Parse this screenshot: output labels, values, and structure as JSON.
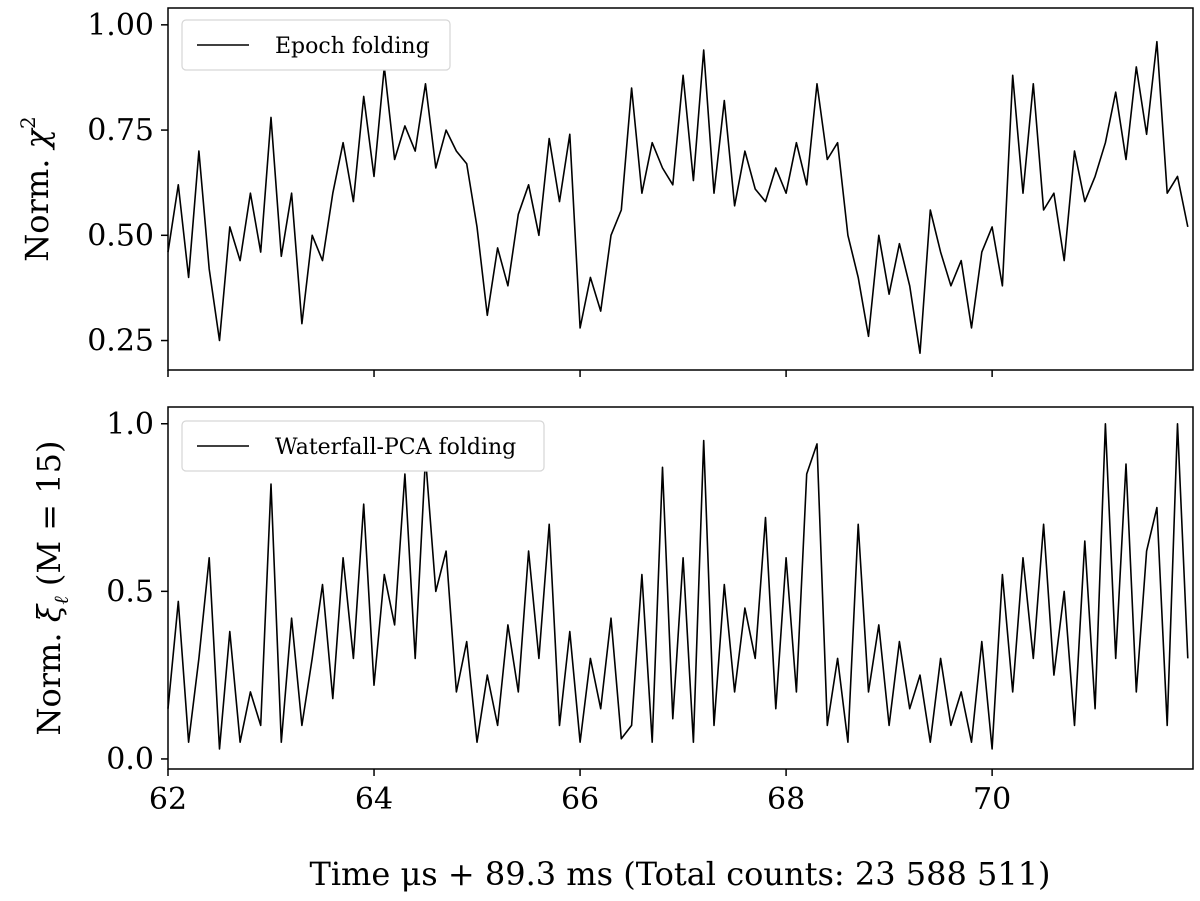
{
  "chart_data": [
    {
      "type": "line",
      "panel": "top",
      "legend_placement": "top-left",
      "ylabel_prefix": "Norm. ",
      "ylabel_symbol": "χ",
      "ylabel_superscript": "2",
      "xlim": [
        62,
        71.95
      ],
      "ylim": [
        0.18,
        1.04
      ],
      "xticks": [
        62,
        64,
        66,
        68,
        70
      ],
      "yticks": [
        0.25,
        0.5,
        0.75,
        1.0
      ],
      "ytick_labels": [
        "0.25",
        "0.50",
        "0.75",
        "1.00"
      ],
      "grid": false,
      "series": [
        {
          "name": "Epoch folding",
          "x": [
            62.0,
            62.1,
            62.2,
            62.3,
            62.4,
            62.5,
            62.6,
            62.7,
            62.8,
            62.9,
            63.0,
            63.1,
            63.2,
            63.3,
            63.4,
            63.5,
            63.6,
            63.7,
            63.8,
            63.9,
            64.0,
            64.1,
            64.2,
            64.3,
            64.4,
            64.5,
            64.6,
            64.7,
            64.8,
            64.9,
            65.0,
            65.1,
            65.2,
            65.3,
            65.4,
            65.5,
            65.6,
            65.7,
            65.8,
            65.9,
            66.0,
            66.1,
            66.2,
            66.3,
            66.4,
            66.5,
            66.6,
            66.7,
            66.8,
            66.9,
            67.0,
            67.1,
            67.2,
            67.3,
            67.4,
            67.5,
            67.6,
            67.7,
            67.8,
            67.9,
            68.0,
            68.1,
            68.2,
            68.3,
            68.4,
            68.5,
            68.6,
            68.7,
            68.8,
            68.9,
            69.0,
            69.1,
            69.2,
            69.3,
            69.4,
            69.5,
            69.6,
            69.7,
            69.8,
            69.9,
            70.0,
            70.1,
            70.2,
            70.3,
            70.4,
            70.5,
            70.6,
            70.7,
            70.8,
            70.9,
            71.0,
            71.1,
            71.2,
            71.3,
            71.4,
            71.5,
            71.6,
            71.7,
            71.8,
            71.9
          ],
          "values": [
            0.46,
            0.62,
            0.4,
            0.7,
            0.42,
            0.25,
            0.52,
            0.44,
            0.6,
            0.46,
            0.78,
            0.45,
            0.6,
            0.29,
            0.5,
            0.44,
            0.6,
            0.72,
            0.58,
            0.83,
            0.64,
            0.9,
            0.68,
            0.76,
            0.7,
            0.86,
            0.66,
            0.75,
            0.7,
            0.67,
            0.52,
            0.31,
            0.47,
            0.38,
            0.55,
            0.62,
            0.5,
            0.73,
            0.58,
            0.74,
            0.28,
            0.4,
            0.32,
            0.5,
            0.56,
            0.85,
            0.6,
            0.72,
            0.66,
            0.62,
            0.88,
            0.63,
            0.94,
            0.6,
            0.82,
            0.57,
            0.7,
            0.61,
            0.58,
            0.66,
            0.6,
            0.72,
            0.62,
            0.86,
            0.68,
            0.72,
            0.5,
            0.4,
            0.26,
            0.5,
            0.36,
            0.48,
            0.38,
            0.22,
            0.56,
            0.46,
            0.38,
            0.44,
            0.28,
            0.46,
            0.52,
            0.38,
            0.88,
            0.6,
            0.86,
            0.56,
            0.6,
            0.44,
            0.7,
            0.58,
            0.64,
            0.72,
            0.84,
            0.68,
            0.9,
            0.74,
            0.96,
            0.6,
            0.64,
            0.52
          ]
        }
      ]
    },
    {
      "type": "line",
      "panel": "bottom",
      "legend_placement": "top-left",
      "ylabel_prefix": "Norm. ",
      "ylabel_symbol": "ξ",
      "ylabel_subscript": "ℓ",
      "ylabel_suffix": " (M = 15)",
      "xlabel": "Time μs + 89.3 ms (Total counts: 23 588 511)",
      "xlim": [
        62,
        71.95
      ],
      "ylim": [
        -0.03,
        1.05
      ],
      "xticks": [
        62,
        64,
        66,
        68,
        70
      ],
      "xtick_labels": [
        "62",
        "64",
        "66",
        "68",
        "70"
      ],
      "yticks": [
        0.0,
        0.5,
        1.0
      ],
      "ytick_labels": [
        "0.0",
        "0.5",
        "1.0"
      ],
      "grid": false,
      "series": [
        {
          "name": "Waterfall-PCA folding",
          "x": [
            62.0,
            62.1,
            62.2,
            62.3,
            62.4,
            62.5,
            62.6,
            62.7,
            62.8,
            62.9,
            63.0,
            63.1,
            63.2,
            63.3,
            63.4,
            63.5,
            63.6,
            63.7,
            63.8,
            63.9,
            64.0,
            64.1,
            64.2,
            64.3,
            64.4,
            64.5,
            64.6,
            64.7,
            64.8,
            64.9,
            65.0,
            65.1,
            65.2,
            65.3,
            65.4,
            65.5,
            65.6,
            65.7,
            65.8,
            65.9,
            66.0,
            66.1,
            66.2,
            66.3,
            66.4,
            66.5,
            66.6,
            66.7,
            66.8,
            66.9,
            67.0,
            67.1,
            67.2,
            67.3,
            67.4,
            67.5,
            67.6,
            67.7,
            67.8,
            67.9,
            68.0,
            68.1,
            68.2,
            68.3,
            68.4,
            68.5,
            68.6,
            68.7,
            68.8,
            68.9,
            69.0,
            69.1,
            69.2,
            69.3,
            69.4,
            69.5,
            69.6,
            69.7,
            69.8,
            69.9,
            70.0,
            70.1,
            70.2,
            70.3,
            70.4,
            70.5,
            70.6,
            70.7,
            70.8,
            70.9,
            71.0,
            71.1,
            71.2,
            71.3,
            71.4,
            71.5,
            71.6,
            71.7,
            71.8,
            71.9
          ],
          "values": [
            0.15,
            0.47,
            0.05,
            0.3,
            0.6,
            0.03,
            0.38,
            0.05,
            0.2,
            0.1,
            0.82,
            0.05,
            0.42,
            0.1,
            0.3,
            0.52,
            0.18,
            0.6,
            0.3,
            0.76,
            0.22,
            0.55,
            0.4,
            0.85,
            0.3,
            0.9,
            0.5,
            0.62,
            0.2,
            0.35,
            0.05,
            0.25,
            0.1,
            0.4,
            0.2,
            0.62,
            0.3,
            0.7,
            0.1,
            0.38,
            0.05,
            0.3,
            0.15,
            0.42,
            0.06,
            0.1,
            0.55,
            0.05,
            0.87,
            0.12,
            0.6,
            0.05,
            0.95,
            0.1,
            0.52,
            0.2,
            0.45,
            0.3,
            0.72,
            0.15,
            0.6,
            0.2,
            0.85,
            0.94,
            0.1,
            0.3,
            0.05,
            0.7,
            0.2,
            0.4,
            0.1,
            0.35,
            0.15,
            0.25,
            0.05,
            0.3,
            0.1,
            0.2,
            0.05,
            0.35,
            0.03,
            0.55,
            0.2,
            0.6,
            0.3,
            0.7,
            0.25,
            0.5,
            0.1,
            0.65,
            0.15,
            1.0,
            0.3,
            0.88,
            0.2,
            0.62,
            0.75,
            0.1,
            1.0,
            0.3
          ]
        }
      ]
    }
  ]
}
